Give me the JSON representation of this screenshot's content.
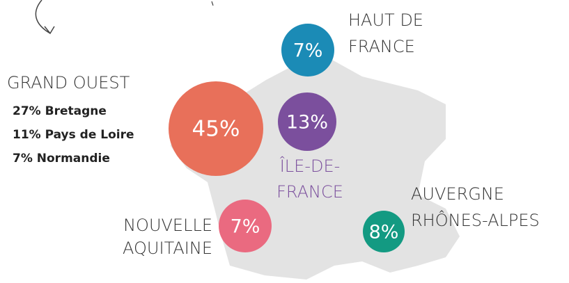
{
  "regions": [
    {
      "name": [
        "HAUT DE",
        "FRANCE"
      ],
      "value_label": "7%",
      "color": "#1b8bb6"
    },
    {
      "name": [
        "GRAND OUEST"
      ],
      "value_label": "45%",
      "color": "#e8705a",
      "details": [
        "27% Bretagne",
        "11% Pays de Loire",
        "7% Normandie"
      ]
    },
    {
      "name": [
        "ÎLE-DE-",
        "FRANCE"
      ],
      "value_label": "13%",
      "color": "#7b4f9d"
    },
    {
      "name": [
        "NOUVELLE",
        "AQUITAINE"
      ],
      "value_label": "7%",
      "color": "#ea6a80"
    },
    {
      "name": [
        "AUVERGNE",
        "RHÔNES-ALPES"
      ],
      "value_label": "8%",
      "color": "#139a82"
    }
  ]
}
